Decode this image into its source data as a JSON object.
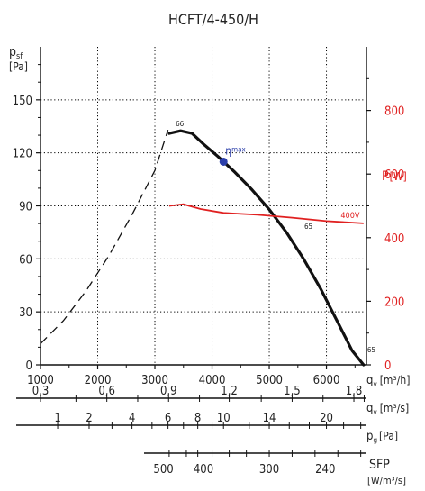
{
  "title": "HCFT/4-450/H",
  "colors": {
    "axis": "#111111",
    "grid": "#000000",
    "curve": "#111111",
    "power": "#e02020",
    "eta_point": "#2b3faa"
  },
  "chart_data": {
    "type": "line",
    "title": "HCFT/4-450/H",
    "grid": true,
    "x_axis": {
      "label": "q",
      "label_sub": "v",
      "unit": "[m³/h]",
      "range": [
        1000,
        6700
      ],
      "ticks": [
        1000,
        2000,
        3000,
        4000,
        5000,
        6000
      ],
      "tick_labels": [
        "1000",
        "2000",
        "3000",
        "4000",
        "5000",
        "6000"
      ]
    },
    "y_left": {
      "label": "p",
      "label_sub": "sf",
      "unit": "[Pa]",
      "range": [
        0,
        180
      ],
      "ticks": [
        0,
        30,
        60,
        90,
        120,
        150
      ],
      "tick_labels": [
        "0",
        "30",
        "60",
        "90",
        "120",
        "150"
      ]
    },
    "y_right": {
      "label": "P",
      "unit": "[W]",
      "range": [
        0,
        1000
      ],
      "ticks": [
        0,
        200,
        400,
        600,
        800
      ],
      "tick_labels": [
        "0",
        "200",
        "400",
        "600",
        "800"
      ]
    },
    "pressure_unstable": [
      [
        1000,
        12
      ],
      [
        1400,
        25
      ],
      [
        1800,
        42
      ],
      [
        2200,
        62
      ],
      [
        2600,
        85
      ],
      [
        3000,
        110
      ],
      [
        3230,
        133
      ]
    ],
    "pressure_stable": [
      [
        3250,
        131
      ],
      [
        3450,
        132.5
      ],
      [
        3650,
        131
      ],
      [
        3850,
        125
      ],
      [
        4100,
        118
      ],
      [
        4400,
        109
      ],
      [
        4700,
        99
      ],
      [
        5000,
        88
      ],
      [
        5300,
        75
      ],
      [
        5600,
        60
      ],
      [
        5900,
        43
      ],
      [
        6200,
        24
      ],
      [
        6450,
        8
      ],
      [
        6650,
        0
      ]
    ],
    "power_curve": [
      [
        3250,
        500
      ],
      [
        3500,
        505
      ],
      [
        3800,
        490
      ],
      [
        4200,
        478
      ],
      [
        4800,
        472
      ],
      [
        5400,
        463
      ],
      [
        6000,
        452
      ],
      [
        6650,
        445
      ]
    ],
    "series_label_power": "400V",
    "efficiency_labels": [
      {
        "text": "66",
        "q": 3300,
        "p": 133
      },
      {
        "text": "65",
        "q": 5550,
        "p": 75
      },
      {
        "text": "65",
        "q": 6650,
        "p": 5
      }
    ],
    "eta_max": {
      "label": "η",
      "label_sub": "max",
      "q": 4200,
      "p": 115
    },
    "secondary_scales": [
      {
        "name": "qv_m3s",
        "label": "q",
        "label_sub": "v",
        "unit": "[m³/s]",
        "labels": [
          {
            "q": 1000,
            "text": "0,3"
          },
          {
            "q": 2160,
            "text": "0,6"
          },
          {
            "q": 3240,
            "text": "0,9"
          },
          {
            "q": 4300,
            "text": "1,2"
          },
          {
            "q": 5400,
            "text": "1,5"
          },
          {
            "q": 6480,
            "text": "1,8"
          }
        ],
        "ticks": [
          1000,
          1620,
          2160,
          2700,
          3240,
          3780,
          4300,
          4860,
          5400,
          5940,
          6480,
          6660
        ]
      },
      {
        "name": "pg",
        "label": "p",
        "label_sub": "g",
        "unit": "[Pa]",
        "labels": [
          {
            "q": 1300,
            "text": "1"
          },
          {
            "q": 1850,
            "text": "2"
          },
          {
            "q": 2600,
            "text": "4"
          },
          {
            "q": 3230,
            "text": "6"
          },
          {
            "q": 3750,
            "text": "8"
          },
          {
            "q": 4200,
            "text": "10"
          },
          {
            "q": 5000,
            "text": "14"
          },
          {
            "q": 6000,
            "text": "20"
          }
        ],
        "ticks": [
          1300,
          1850,
          2250,
          2600,
          2950,
          3230,
          3500,
          3750,
          4000,
          4200,
          4650,
          5000,
          5350,
          5700,
          6000,
          6300,
          6600
        ]
      },
      {
        "name": "sfp",
        "label": "SFP",
        "unit": "[W/m³/s]",
        "labels": [
          {
            "q": 3150,
            "text": "500"
          },
          {
            "q": 3850,
            "text": "400"
          },
          {
            "q": 5000,
            "text": "300"
          },
          {
            "q": 5980,
            "text": "240"
          }
        ],
        "ticks": [
          3250,
          3550,
          3750,
          4000,
          4300,
          4600,
          5000,
          5400,
          5800,
          6200,
          6600
        ]
      }
    ]
  }
}
